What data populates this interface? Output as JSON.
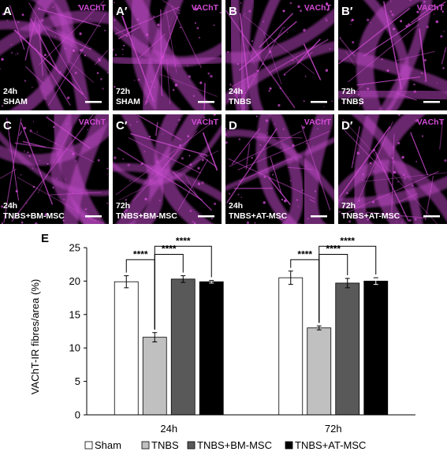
{
  "panels": [
    {
      "letter": "A",
      "stain": "VAChT",
      "time": "24h",
      "condition": "SHAM"
    },
    {
      "letter": "A′",
      "stain": "VAChT",
      "time": "72h",
      "condition": "SHAM"
    },
    {
      "letter": "B",
      "stain": "VAChT",
      "time": "24h",
      "condition": "TNBS"
    },
    {
      "letter": "B′",
      "stain": "VAChT",
      "time": "72h",
      "condition": "TNBS"
    },
    {
      "letter": "C",
      "stain": "VAChT",
      "time": "24h",
      "condition": "TNBS+BM-MSC"
    },
    {
      "letter": "C′",
      "stain": "VAChT",
      "time": "72h",
      "condition": "TNBS+BM-MSC"
    },
    {
      "letter": "D",
      "stain": "VAChT",
      "time": "24h",
      "condition": "TNBS+AT-MSC"
    },
    {
      "letter": "D′",
      "stain": "VAChT",
      "time": "72h",
      "condition": "TNBS+AT-MSC"
    }
  ],
  "colors": {
    "stain": "#d24bd6",
    "fibre": "#c04ac8",
    "background": "#000000",
    "label": "#ffffff"
  },
  "chart_data": {
    "type": "bar",
    "panel_letter": "E",
    "ylabel": "VAChT-IR fibres/area (%)",
    "ylim": [
      0,
      25
    ],
    "yticks": [
      0,
      5,
      10,
      15,
      20,
      25
    ],
    "categories": [
      "24h",
      "72h"
    ],
    "series": [
      {
        "name": "Sham",
        "color": "#ffffff",
        "values": [
          19.9,
          20.5
        ],
        "errors": [
          0.9,
          1.0
        ]
      },
      {
        "name": "TNBS",
        "color": "#c0c0c0",
        "values": [
          11.6,
          13.0
        ],
        "errors": [
          0.7,
          0.3
        ]
      },
      {
        "name": "TNBS+BM-MSC",
        "color": "#595959",
        "values": [
          20.3,
          19.7
        ],
        "errors": [
          0.5,
          0.7
        ]
      },
      {
        "name": "TNBS+AT-MSC",
        "color": "#000000",
        "values": [
          19.9,
          20.0
        ],
        "errors": [
          0.2,
          0.5
        ]
      }
    ],
    "significance": {
      "label": "****",
      "comparisons": [
        {
          "category": 0,
          "from": 0,
          "to": 1
        },
        {
          "category": 0,
          "from": 1,
          "to": 2
        },
        {
          "category": 0,
          "from": 1,
          "to": 3
        },
        {
          "category": 1,
          "from": 0,
          "to": 1
        },
        {
          "category": 1,
          "from": 1,
          "to": 2
        },
        {
          "category": 1,
          "from": 1,
          "to": 3
        }
      ]
    },
    "legend_position": "bottom",
    "grid": false
  }
}
